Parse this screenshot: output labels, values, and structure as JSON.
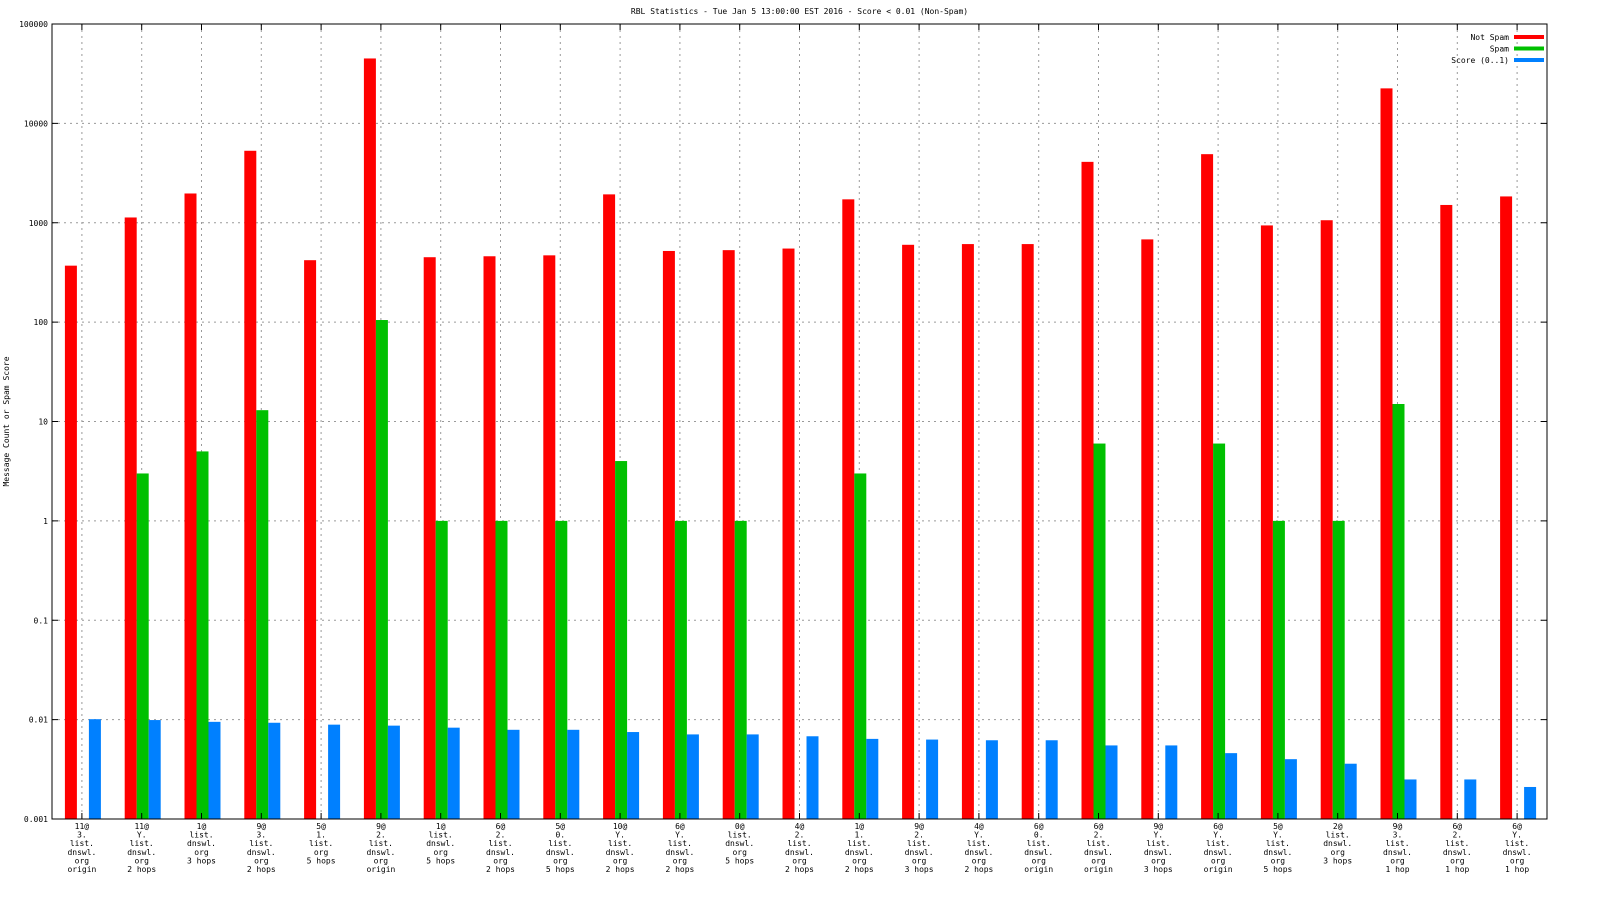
{
  "chart_data": {
    "type": "bar",
    "title": "RBL Statistics - Tue Jan  5 13:00:00 EST 2016 - Score < 0.01 (Non-Spam)",
    "xlabel": "",
    "ylabel": "Message Count or Spam Score",
    "yscale": "log",
    "ylim": [
      0.001,
      100000
    ],
    "yticks": [
      "100000",
      "10000",
      "1000",
      "100",
      "10",
      "1",
      "0.1",
      "0.01",
      "0.001"
    ],
    "grid": true,
    "legend_position": "top-right",
    "categories": [
      [
        "11@",
        "3.",
        "list.",
        "dnswl.",
        "org",
        "origin"
      ],
      [
        "11@",
        "Y.",
        "list.",
        "dnswl.",
        "org",
        "2 hops"
      ],
      [
        "1@",
        "list.",
        "dnswl.",
        "org",
        "3 hops"
      ],
      [
        "9@",
        "3.",
        "list.",
        "dnswl.",
        "org",
        "2 hops"
      ],
      [
        "5@",
        "1.",
        "list.",
        "org",
        "5 hops"
      ],
      [
        "9@",
        "2.",
        "list.",
        "dnswl.",
        "org",
        "origin"
      ],
      [
        "1@",
        "list.",
        "dnswl.",
        "org",
        "5 hops"
      ],
      [
        "6@",
        "2.",
        "list.",
        "dnswl.",
        "org",
        "2 hops"
      ],
      [
        "5@",
        "0.",
        "list.",
        "dnswl.",
        "org",
        "5 hops"
      ],
      [
        "10@",
        "Y.",
        "list.",
        "dnswl.",
        "org",
        "2 hops"
      ],
      [
        "6@",
        "Y.",
        "list.",
        "dnswl.",
        "org",
        "2 hops"
      ],
      [
        "0@",
        "list.",
        "dnswl.",
        "org",
        "5 hops"
      ],
      [
        "4@",
        "2.",
        "list.",
        "dnswl.",
        "org",
        "2 hops"
      ],
      [
        "1@",
        "1.",
        "list.",
        "dnswl.",
        "org",
        "2 hops"
      ],
      [
        "9@",
        "2.",
        "list.",
        "dnswl.",
        "org",
        "3 hops"
      ],
      [
        "4@",
        "Y.",
        "list.",
        "dnswl.",
        "org",
        "2 hops"
      ],
      [
        "6@",
        "0.",
        "list.",
        "dnswl.",
        "org",
        "origin"
      ],
      [
        "6@",
        "2.",
        "list.",
        "dnswl.",
        "org",
        "origin"
      ],
      [
        "9@",
        "Y.",
        "list.",
        "dnswl.",
        "org",
        "3 hops"
      ],
      [
        "6@",
        "Y.",
        "list.",
        "dnswl.",
        "org",
        "origin"
      ],
      [
        "5@",
        "Y.",
        "list.",
        "dnswl.",
        "org",
        "5 hops"
      ],
      [
        "2@",
        "list.",
        "dnswl.",
        "org",
        "3 hops"
      ],
      [
        "9@",
        "3.",
        "list.",
        "dnswl.",
        "org",
        "1 hop"
      ],
      [
        "6@",
        "2.",
        "list.",
        "dnswl.",
        "org",
        "1 hop"
      ],
      [
        "6@",
        "Y.",
        "list.",
        "dnswl.",
        "org",
        "1 hop"
      ]
    ],
    "series": [
      {
        "name": "Not Spam",
        "color": "#ff0000",
        "values": [
          370,
          1130,
          1970,
          5300,
          420,
          45000,
          450,
          460,
          470,
          1930,
          520,
          530,
          550,
          1720,
          600,
          610,
          610,
          4100,
          680,
          4900,
          940,
          1060,
          22500,
          1510,
          1840
        ]
      },
      {
        "name": "Spam",
        "color": "#00c000",
        "values": [
          null,
          3,
          5,
          13,
          null,
          105,
          1,
          1,
          1,
          4,
          1,
          1,
          null,
          3,
          null,
          null,
          null,
          6,
          null,
          6,
          1,
          1,
          15,
          null,
          null
        ]
      },
      {
        "name": "Score (0..1)",
        "color": "#0080ff",
        "values": [
          0.0101,
          0.0099,
          0.0095,
          0.0093,
          0.0089,
          0.0087,
          0.0083,
          0.0079,
          0.0079,
          0.0075,
          0.0071,
          0.0071,
          0.0068,
          0.0064,
          0.0063,
          0.0062,
          0.0062,
          0.0055,
          0.0055,
          0.0046,
          0.004,
          0.0036,
          0.0025,
          0.0025,
          0.0021
        ]
      }
    ]
  }
}
